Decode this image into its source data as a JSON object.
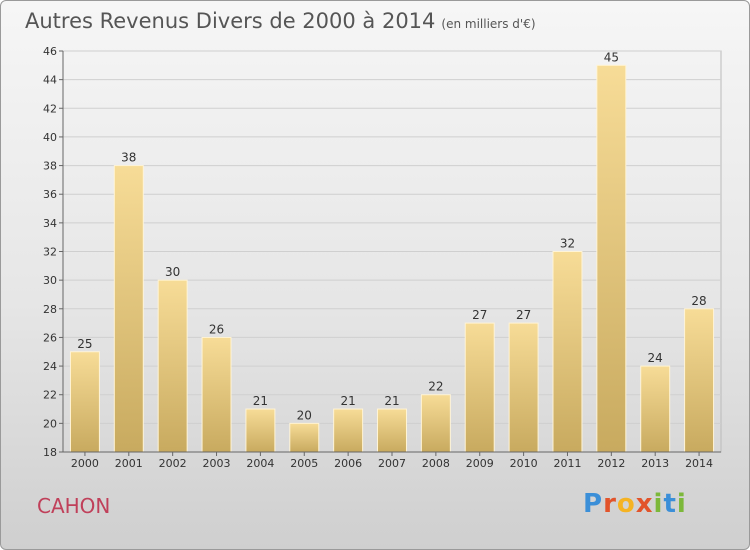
{
  "header": {
    "title": "Autres Revenus Divers de 2000 à 2014",
    "unit": "(en milliers d'€)"
  },
  "footer": {
    "town": "CAHON",
    "logo_letters": [
      "P",
      "r",
      "o",
      "x",
      "i",
      "t",
      "i"
    ],
    "logo_colors": [
      "#3b8fd8",
      "#e2542b",
      "#f5b323",
      "#e2542b",
      "#7cb83a",
      "#3b8fd8",
      "#7cb83a"
    ]
  },
  "chart_data": {
    "type": "bar",
    "title": "Autres Revenus Divers de 2000 à 2014",
    "subtitle": "(en milliers d'€)",
    "categories": [
      "2000",
      "2001",
      "2002",
      "2003",
      "2004",
      "2005",
      "2006",
      "2007",
      "2008",
      "2009",
      "2010",
      "2011",
      "2012",
      "2013",
      "2014"
    ],
    "values": [
      25,
      38,
      30,
      26,
      21,
      20,
      21,
      21,
      22,
      27,
      27,
      32,
      45,
      24,
      28
    ],
    "ylim": [
      18,
      46
    ],
    "yticks": [
      18,
      20,
      22,
      24,
      26,
      28,
      30,
      32,
      34,
      36,
      38,
      40,
      42,
      44,
      46
    ],
    "grid": true,
    "bar_color": "#e8c87a"
  }
}
